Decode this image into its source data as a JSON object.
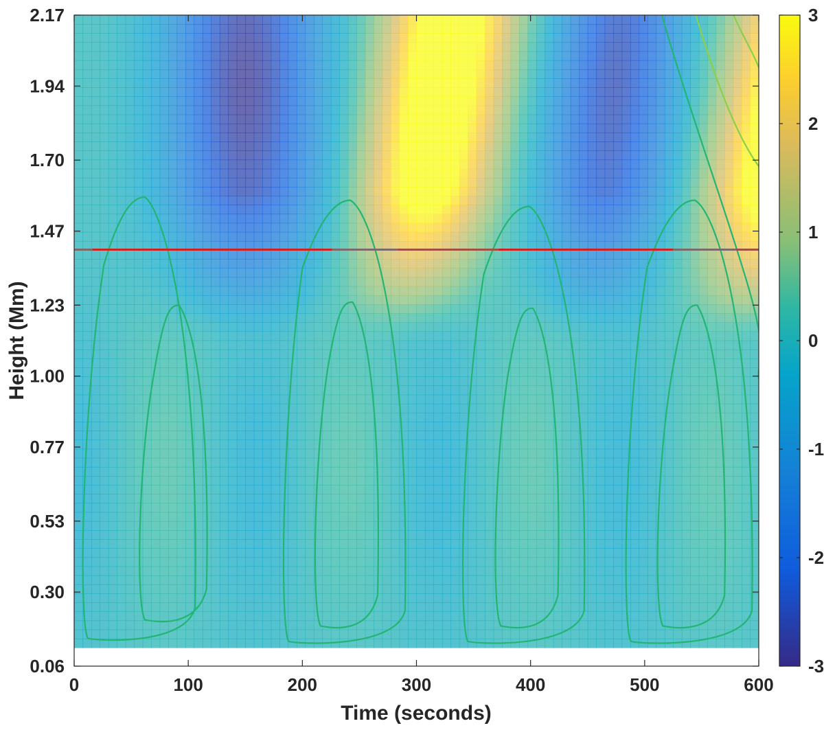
{
  "chart_data": {
    "type": "heatmap",
    "title": "",
    "xlabel": "Time (seconds)",
    "ylabel": "Height (Mm)",
    "xlim": [
      0,
      600
    ],
    "ylim": [
      0.06,
      2.17
    ],
    "x_ticks": [
      0,
      100,
      200,
      300,
      400,
      500,
      600
    ],
    "y_ticks": [
      0.06,
      0.3,
      0.53,
      0.77,
      1.0,
      1.23,
      1.47,
      1.7,
      1.94,
      2.17
    ],
    "y_tick_labels": [
      "0.06",
      "0.30",
      "0.53",
      "0.77",
      "1.00",
      "1.23",
      "1.47",
      "1.70",
      "1.94",
      "2.17"
    ],
    "colorbar": {
      "min": -3,
      "max": 3,
      "ticks": [
        -3,
        -2,
        -1,
        0,
        1,
        2,
        3
      ],
      "tick_labels": [
        "-3",
        "-2",
        "-1",
        "0",
        "1",
        "2",
        "3"
      ],
      "colormap": "parula"
    },
    "data_y_range": [
      0.12,
      2.17
    ],
    "reference_line": {
      "y": 1.41,
      "segments": [
        {
          "x0": 0,
          "x1": 16,
          "color": "#7a6a6a"
        },
        {
          "x0": 16,
          "x1": 226,
          "color": "#d02020"
        },
        {
          "x0": 226,
          "x1": 283,
          "color": "#7a6a6a"
        },
        {
          "x0": 283,
          "x1": 372,
          "color": "#a05040"
        },
        {
          "x0": 372,
          "x1": 525,
          "color": "#d02020"
        },
        {
          "x0": 525,
          "x1": 580,
          "color": "#7a6a6a"
        },
        {
          "x0": 580,
          "x1": 600,
          "color": "#a05040"
        }
      ]
    },
    "contour_color": "#22b573",
    "upper_contour_color": "#8ad04a",
    "contour_loops": [
      {
        "name": "outer",
        "center_x": 58,
        "half_width_bottom": 52,
        "half_width_top": 32,
        "y_bottom": 0.15,
        "y_top": 1.58
      },
      {
        "name": "inner",
        "center_x": 88,
        "half_width_bottom": 32,
        "half_width_top": 18,
        "y_bottom": 0.21,
        "y_top": 1.23
      },
      {
        "name": "outer",
        "center_x": 238,
        "half_width_bottom": 56,
        "half_width_top": 38,
        "y_bottom": 0.14,
        "y_top": 1.57
      },
      {
        "name": "inner",
        "center_x": 240,
        "half_width_bottom": 30,
        "half_width_top": 18,
        "y_bottom": 0.19,
        "y_top": 1.24
      },
      {
        "name": "outer",
        "center_x": 395,
        "half_width_bottom": 56,
        "half_width_top": 36,
        "y_bottom": 0.14,
        "y_top": 1.55
      },
      {
        "name": "inner",
        "center_x": 398,
        "half_width_bottom": 30,
        "half_width_top": 18,
        "y_bottom": 0.19,
        "y_top": 1.22
      },
      {
        "name": "outer",
        "center_x": 540,
        "half_width_bottom": 58,
        "half_width_top": 38,
        "y_bottom": 0.14,
        "y_top": 1.57
      },
      {
        "name": "inner",
        "center_x": 542,
        "half_width_bottom": 32,
        "half_width_top": 18,
        "y_bottom": 0.19,
        "y_top": 1.23
      }
    ],
    "field_features": [
      {
        "type": "trough",
        "x_center": 150,
        "x_width": 65,
        "y_center": 1.95,
        "y_width": 0.3,
        "value": -2.5,
        "top_slope": 0
      },
      {
        "type": "crest",
        "x_center": 300,
        "x_width": 55,
        "y_center": 1.95,
        "y_width": 0.45,
        "value": 3.2,
        "top_slope": 40
      },
      {
        "type": "trough",
        "x_center": 460,
        "x_width": 55,
        "y_center": 1.95,
        "y_width": 0.35,
        "value": -2.2,
        "top_slope": 25
      },
      {
        "type": "crest",
        "x_center": 610,
        "x_width": 60,
        "y_center": 1.9,
        "y_width": 0.5,
        "value": 3.5,
        "top_slope": 50
      }
    ]
  }
}
